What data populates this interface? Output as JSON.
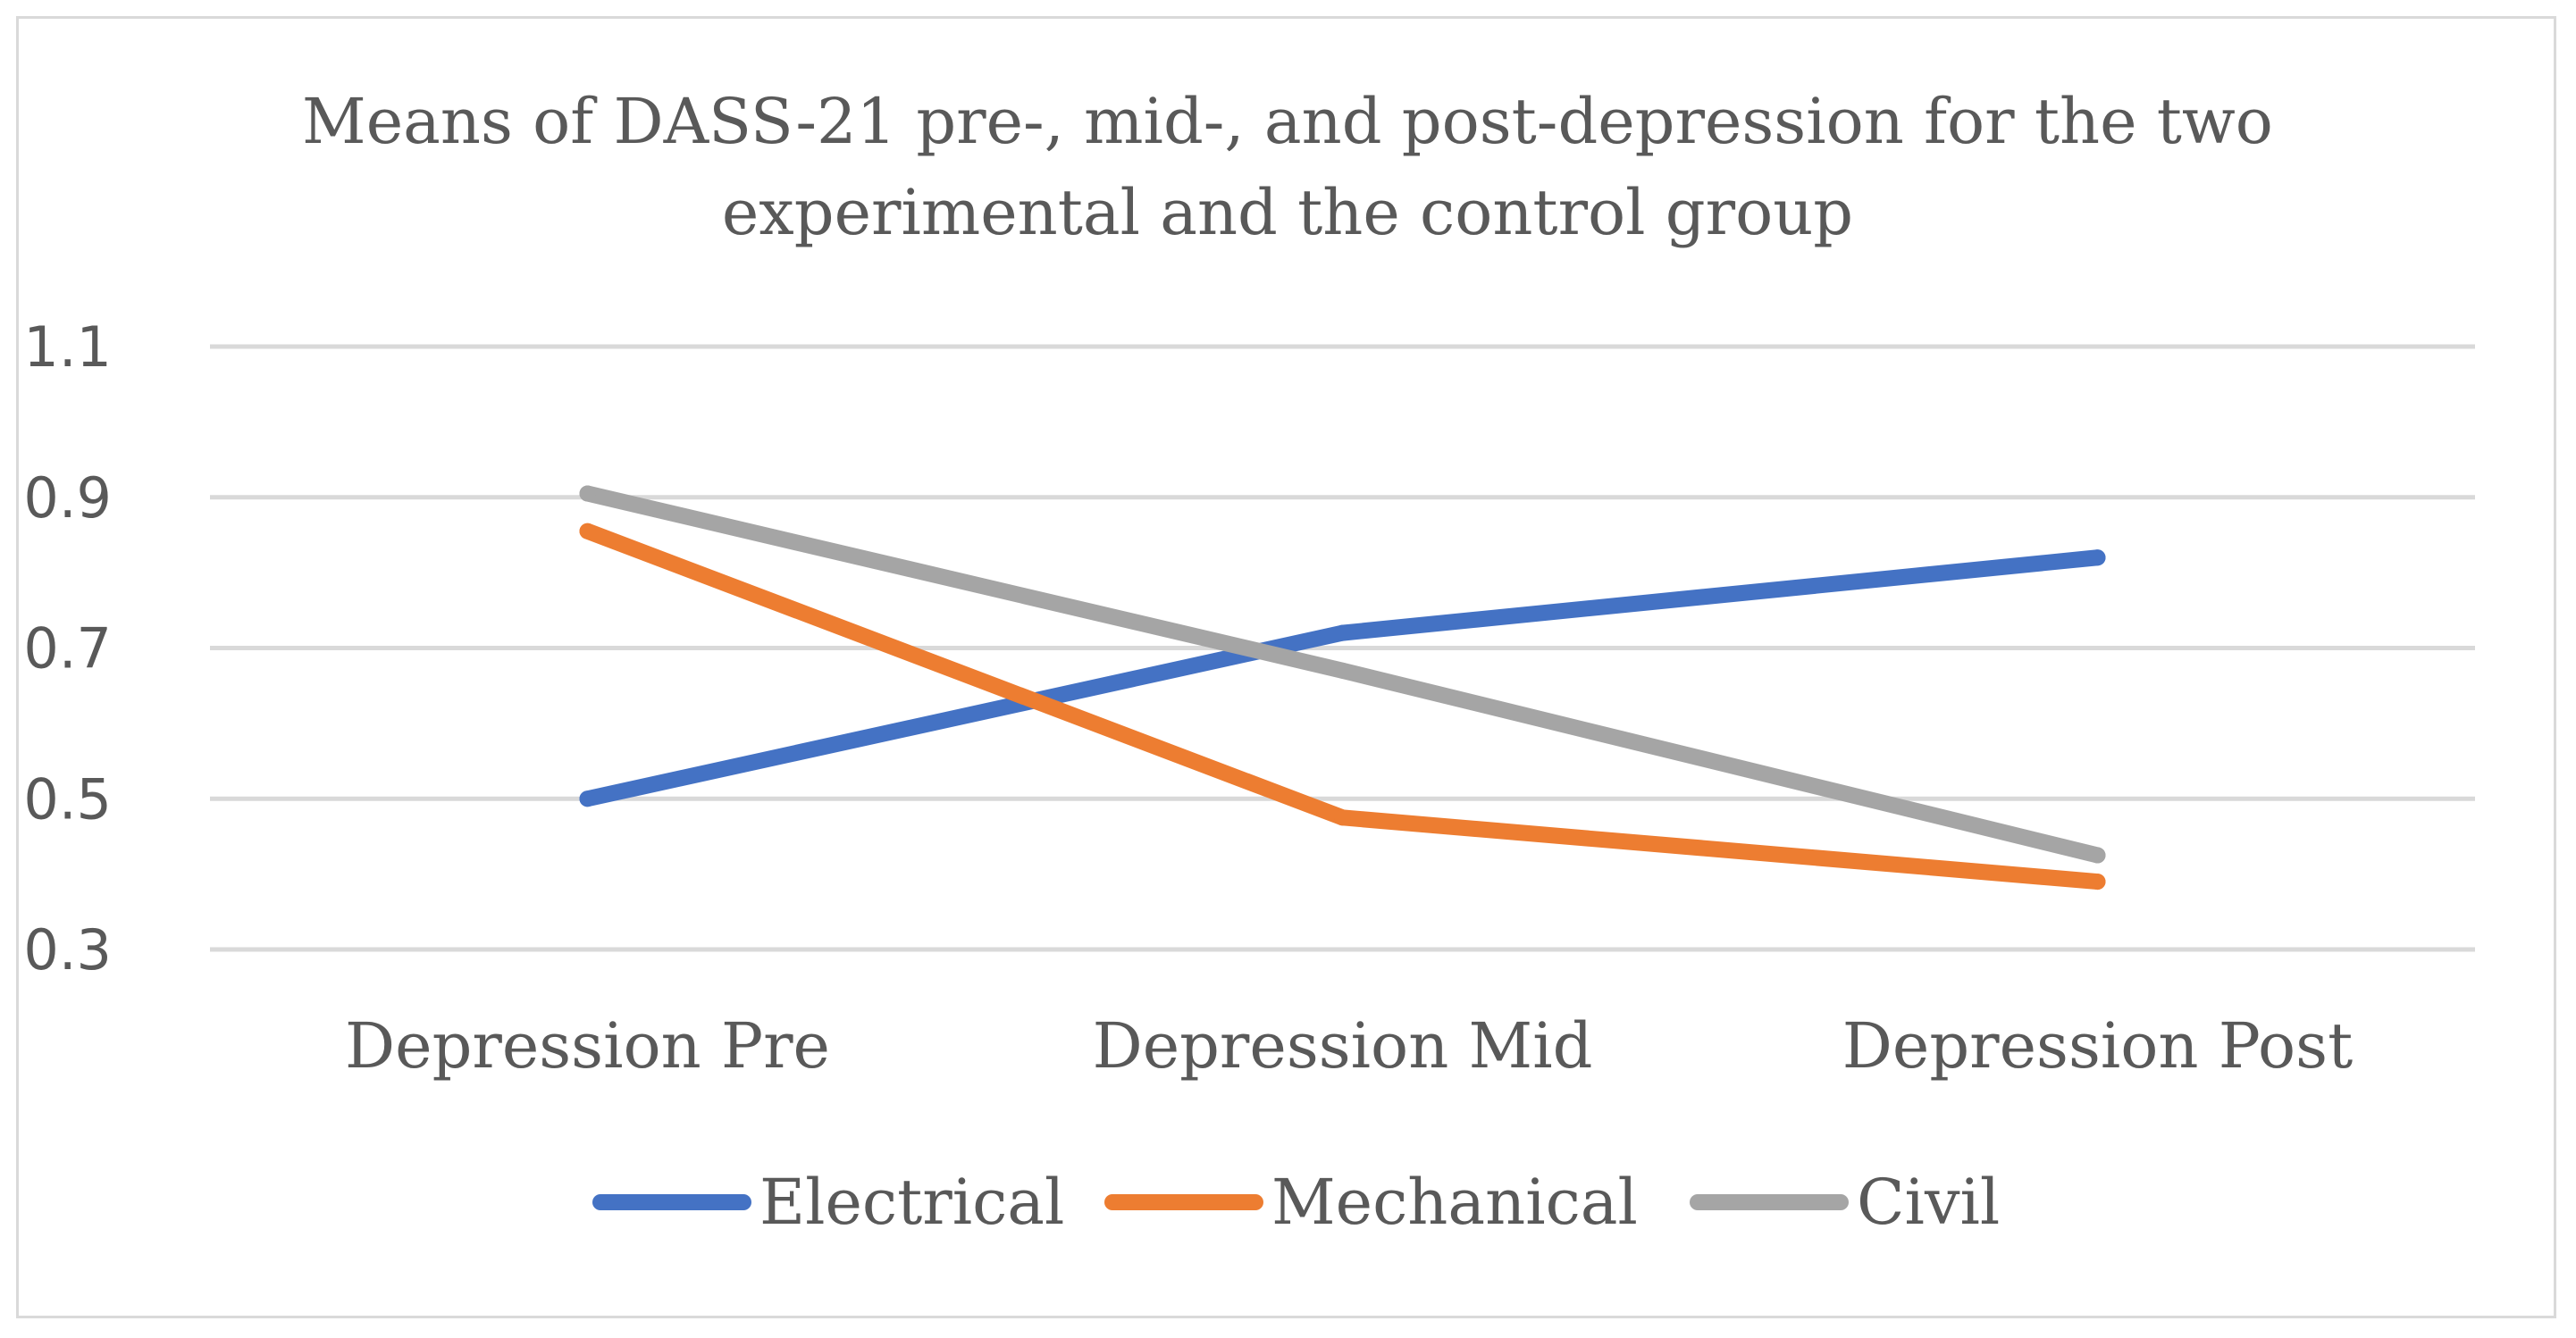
{
  "chart_data": {
    "type": "line",
    "title_lines": [
      "Means of DASS-21 pre-, mid-, and post-depression for the two",
      "experimental and the control group"
    ],
    "categories": [
      "Depression Pre",
      "Depression Mid",
      "Depression Post"
    ],
    "ylim": [
      0.3,
      1.1
    ],
    "yticks": [
      1.1,
      0.9,
      0.7,
      0.5,
      0.3
    ],
    "ytick_labels": [
      "1.1",
      "0.9",
      "0.7",
      "0.5",
      "0.3"
    ],
    "grid": true,
    "legend_position": "bottom",
    "series": [
      {
        "name": "Electrical",
        "color": "#4472c4",
        "values": [
          0.5,
          0.72,
          0.82
        ]
      },
      {
        "name": "Mechanical",
        "color": "#ed7d31",
        "values": [
          0.855,
          0.475,
          0.39
        ]
      },
      {
        "name": "Civil",
        "color": "#a5a5a5",
        "values": [
          0.905,
          0.67,
          0.425
        ]
      }
    ]
  }
}
